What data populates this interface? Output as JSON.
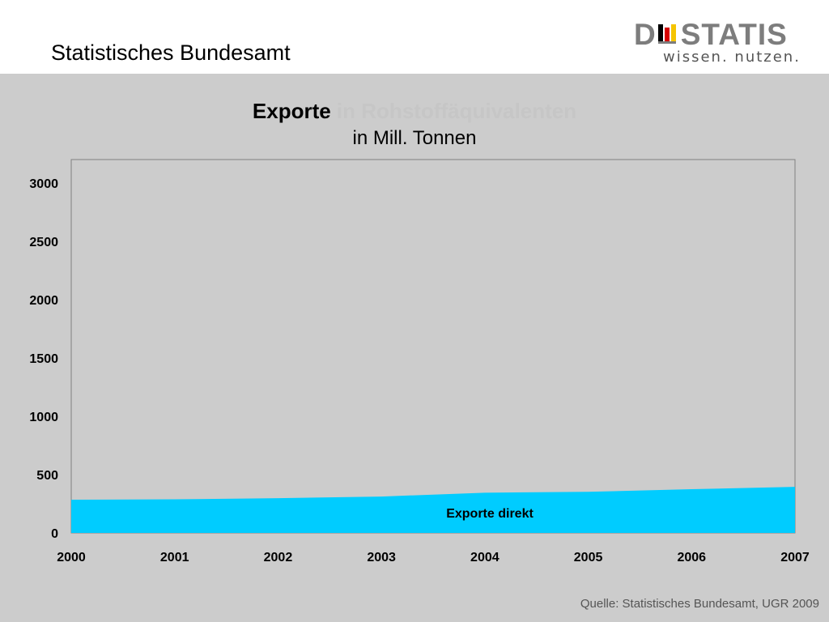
{
  "header": {
    "organization": "Statistisches Bundesamt",
    "logo": {
      "brand": "DESTATIS",
      "brand_left": "D",
      "brand_right": "STATIS",
      "tagline": "wissen. nutzen."
    }
  },
  "colors": {
    "background": "#cccccc",
    "area": "#00ccff",
    "logo_gray": "#7d7d7d"
  },
  "chart_data": {
    "type": "area",
    "title": "Exporte",
    "title_faded": "in Rohstoffäquivalenten",
    "subtitle": "in Mill. Tonnen",
    "categories": [
      "2000",
      "2001",
      "2002",
      "2003",
      "2004",
      "2005",
      "2006",
      "2007"
    ],
    "series": [
      {
        "name": "Exporte direkt",
        "values": [
          285,
          288,
          298,
          312,
          345,
          352,
          375,
          395
        ],
        "color": "#00ccff"
      }
    ],
    "ylim": [
      0,
      3200
    ],
    "yticks": [
      0,
      500,
      1000,
      1500,
      2000,
      2500,
      3000
    ],
    "grid": false,
    "legend": "inline"
  },
  "footer": {
    "source": "Quelle: Statistisches Bundesamt, UGR 2009"
  }
}
